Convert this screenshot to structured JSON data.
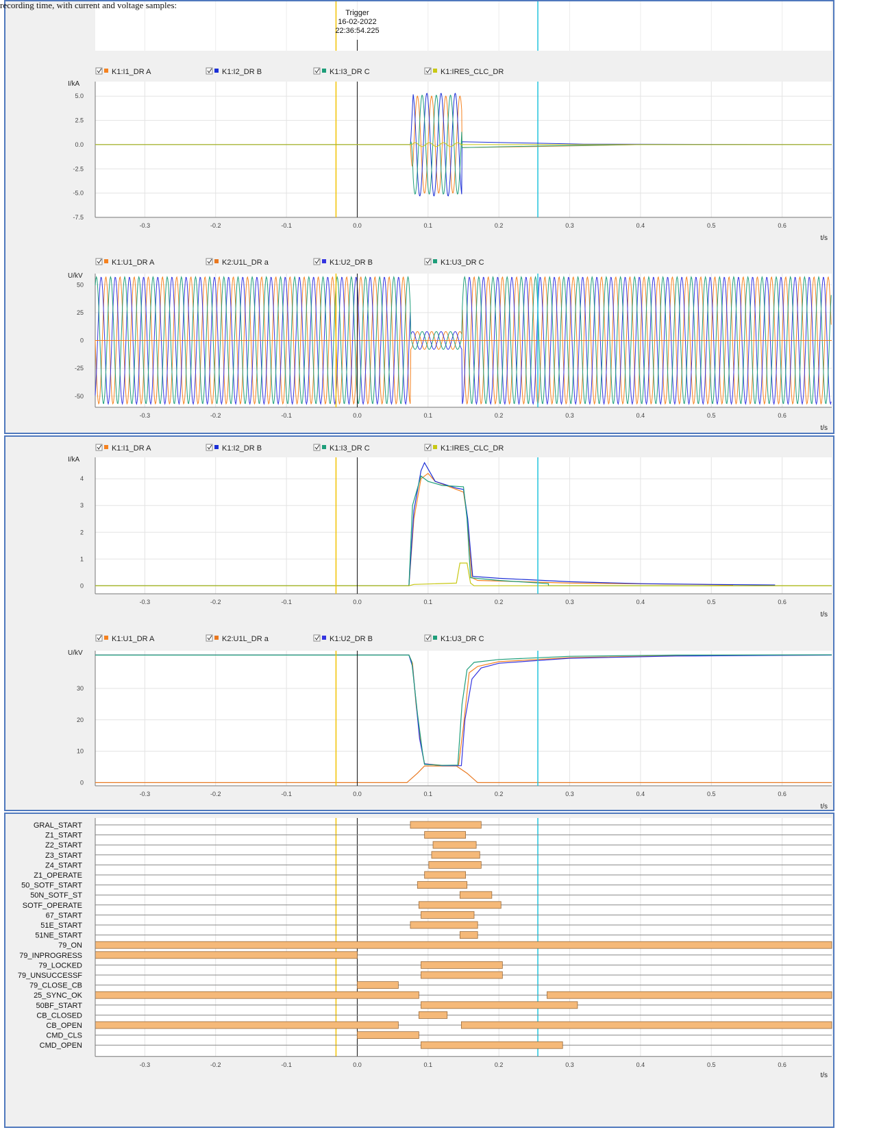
{
  "caption": "recording time, with current and voltage samples:",
  "trigger": {
    "label": "Trigger",
    "date": "16-02-2022",
    "time": "22:36:54.225"
  },
  "colors": {
    "I1": "#f58220",
    "I2": "#1b2fd6",
    "I3": "#1e9e7a",
    "IRES": "#c8c814",
    "U1": "#f58220",
    "U1L": "#e87820",
    "U2": "#3434e0",
    "U3": "#1e9e7a",
    "trigger_cursor": "#f2c200",
    "cursor2": "#22c4dc",
    "zero_line": "#111111",
    "digital_bar": "#f5b979",
    "digital_bar_border": "#9a6a3a"
  },
  "cursors": {
    "trigger_t": -0.03,
    "cursor2_t": 0.255,
    "zero_t": 0.0
  },
  "chart_data": [
    {
      "id": "inst_current",
      "type": "line",
      "xlabel": "t/s",
      "ylabel": "I/kA",
      "xlim": [
        -0.37,
        0.67
      ],
      "ylim": [
        -7.5,
        6.5
      ],
      "xticks": [
        -0.3,
        -0.2,
        -0.1,
        0.0,
        0.1,
        0.2,
        0.3,
        0.4,
        0.5,
        0.6
      ],
      "yticks": [
        -7.5,
        -5.0,
        -2.5,
        0.0,
        2.5,
        5.0
      ],
      "legend": [
        "K1:I1_DR A",
        "K1:I2_DR B",
        "K1:I3_DR C",
        "K1:IRES_CLC_DR"
      ],
      "legend_colors": [
        "I1",
        "I2",
        "I3",
        "IRES"
      ],
      "series": [
        {
          "name": "K1:I1_DR A",
          "wave": {
            "amp": 5.0,
            "freq": 50,
            "phase": 0,
            "t0": 0.075,
            "t1": 0.148
          },
          "tail": [
            [
              0.148,
              -0.3
            ],
            [
              0.25,
              -0.2
            ],
            [
              0.4,
              0.0
            ],
            [
              0.67,
              0.0
            ]
          ]
        },
        {
          "name": "K1:I2_DR B",
          "wave": {
            "amp": 5.3,
            "freq": 50,
            "phase": 120,
            "t0": 0.075,
            "t1": 0.148
          },
          "tail": [
            [
              0.148,
              0.3
            ],
            [
              0.25,
              0.15
            ],
            [
              0.32,
              0.05
            ],
            [
              0.67,
              0.0
            ]
          ]
        },
        {
          "name": "K1:I3_DR C",
          "wave": {
            "amp": 5.1,
            "freq": 50,
            "phase": 240,
            "t0": 0.075,
            "t1": 0.148
          },
          "tail": [
            [
              0.148,
              -0.3
            ],
            [
              0.25,
              -0.15
            ],
            [
              0.4,
              0.0
            ],
            [
              0.67,
              0.0
            ]
          ]
        },
        {
          "name": "K1:IRES_CLC_DR",
          "wave": {
            "amp": 0.2,
            "freq": 50,
            "phase": 60,
            "t0": 0.075,
            "t1": 0.148
          },
          "tail": [
            [
              0.148,
              0.0
            ],
            [
              0.67,
              0.0
            ]
          ]
        }
      ]
    },
    {
      "id": "inst_voltage",
      "type": "line",
      "xlabel": "t/s",
      "ylabel": "U/kV",
      "xlim": [
        -0.37,
        0.67
      ],
      "ylim": [
        -60,
        60
      ],
      "xticks": [
        -0.3,
        -0.2,
        -0.1,
        0.0,
        0.1,
        0.2,
        0.3,
        0.4,
        0.5,
        0.6
      ],
      "yticks": [
        -50,
        -25,
        0,
        25,
        50
      ],
      "legend": [
        "K1:U1_DR A",
        "K2:U1L_DR a",
        "K1:U2_DR B",
        "K1:U3_DR C"
      ],
      "legend_colors": [
        "U1",
        "U1L",
        "U2",
        "U3"
      ],
      "series": [
        {
          "name": "K1:U1_DR A",
          "amp": 57,
          "freq": 50,
          "phase": 0,
          "sag": {
            "t0": 0.075,
            "t1": 0.148,
            "amp": 8
          }
        },
        {
          "name": "K2:U1L_DR a",
          "amp": 0,
          "freq": 50,
          "phase": 0,
          "sag": {
            "t0": 0.075,
            "t1": 0.148,
            "amp": 0
          }
        },
        {
          "name": "K1:U2_DR B",
          "amp": 57,
          "freq": 50,
          "phase": 120,
          "sag": {
            "t0": 0.075,
            "t1": 0.148,
            "amp": 8
          }
        },
        {
          "name": "K1:U3_DR C",
          "amp": 57,
          "freq": 50,
          "phase": 240,
          "sag": {
            "t0": 0.075,
            "t1": 0.148,
            "amp": 8
          }
        }
      ]
    },
    {
      "id": "rms_current",
      "type": "line",
      "xlabel": "t/s",
      "ylabel": "I/kA",
      "xlim": [
        -0.37,
        0.67
      ],
      "ylim": [
        -0.3,
        4.8
      ],
      "xticks": [
        -0.3,
        -0.2,
        -0.1,
        0.0,
        0.1,
        0.2,
        0.3,
        0.4,
        0.5,
        0.6
      ],
      "yticks": [
        0,
        1,
        2,
        3,
        4
      ],
      "legend": [
        "K1:I1_DR A",
        "K1:I2_DR B",
        "K1:I3_DR C",
        "K1:IRES_CLC_DR"
      ],
      "legend_colors": [
        "I1",
        "I2",
        "I3",
        "IRES"
      ],
      "series": [
        {
          "name": "K1:I1_DR A",
          "points": [
            [
              -0.37,
              0
            ],
            [
              0.073,
              0
            ],
            [
              0.08,
              2.5
            ],
            [
              0.09,
              4.0
            ],
            [
              0.1,
              4.2
            ],
            [
              0.11,
              3.9
            ],
            [
              0.14,
              3.6
            ],
            [
              0.15,
              3.5
            ],
            [
              0.155,
              2.6
            ],
            [
              0.162,
              0.3
            ],
            [
              0.17,
              0.2
            ],
            [
              0.3,
              0.1
            ],
            [
              0.48,
              0.05
            ],
            [
              0.53,
              0.03
            ],
            [
              0.53,
              0
            ],
            [
              0.67,
              0
            ]
          ]
        },
        {
          "name": "K1:I2_DR B",
          "points": [
            [
              -0.37,
              0
            ],
            [
              0.073,
              0
            ],
            [
              0.08,
              2.8
            ],
            [
              0.09,
              4.3
            ],
            [
              0.095,
              4.6
            ],
            [
              0.11,
              3.9
            ],
            [
              0.14,
              3.65
            ],
            [
              0.15,
              3.6
            ],
            [
              0.156,
              2.5
            ],
            [
              0.163,
              0.35
            ],
            [
              0.2,
              0.28
            ],
            [
              0.3,
              0.15
            ],
            [
              0.4,
              0.08
            ],
            [
              0.5,
              0.05
            ],
            [
              0.59,
              0.03
            ]
          ]
        },
        {
          "name": "K1:I3_DR C",
          "points": [
            [
              -0.37,
              0
            ],
            [
              0.073,
              0
            ],
            [
              0.078,
              3.0
            ],
            [
              0.09,
              4.1
            ],
            [
              0.1,
              3.9
            ],
            [
              0.12,
              3.75
            ],
            [
              0.15,
              3.7
            ],
            [
              0.155,
              2.5
            ],
            [
              0.16,
              0.3
            ],
            [
              0.2,
              0.2
            ],
            [
              0.27,
              0.08
            ],
            [
              0.27,
              0
            ],
            [
              0.67,
              0
            ]
          ]
        },
        {
          "name": "K1:IRES_CLC_DR",
          "points": [
            [
              -0.37,
              0
            ],
            [
              0.073,
              0
            ],
            [
              0.08,
              0.05
            ],
            [
              0.14,
              0.1
            ],
            [
              0.145,
              0.85
            ],
            [
              0.155,
              0.85
            ],
            [
              0.16,
              0.1
            ],
            [
              0.165,
              0
            ],
            [
              0.67,
              0
            ]
          ]
        }
      ]
    },
    {
      "id": "rms_voltage",
      "type": "line",
      "xlabel": "t/s",
      "ylabel": "U/kV",
      "xlim": [
        -0.37,
        0.67
      ],
      "ylim": [
        -1,
        42
      ],
      "xticks": [
        -0.3,
        -0.2,
        -0.1,
        0.0,
        0.1,
        0.2,
        0.3,
        0.4,
        0.5,
        0.6
      ],
      "yticks": [
        0,
        10,
        20,
        30
      ],
      "legend": [
        "K1:U1_DR A",
        "K2:U1L_DR a",
        "K1:U2_DR B",
        "K1:U3_DR C"
      ],
      "legend_colors": [
        "U1",
        "U1L",
        "U2",
        "U3"
      ],
      "series": [
        {
          "name": "K1:U1_DR A",
          "points": [
            [
              -0.37,
              40.6
            ],
            [
              0.073,
              40.6
            ],
            [
              0.078,
              38
            ],
            [
              0.083,
              25
            ],
            [
              0.09,
              12
            ],
            [
              0.095,
              6
            ],
            [
              0.12,
              5.5
            ],
            [
              0.143,
              5.5
            ],
            [
              0.15,
              18
            ],
            [
              0.158,
              35
            ],
            [
              0.17,
              37
            ],
            [
              0.2,
              38.5
            ],
            [
              0.3,
              39.8
            ],
            [
              0.45,
              40.4
            ],
            [
              0.67,
              40.6
            ]
          ]
        },
        {
          "name": "K2:U1L_DR a",
          "points": [
            [
              -0.37,
              0
            ],
            [
              0.07,
              0
            ],
            [
              0.085,
              3
            ],
            [
              0.095,
              5.3
            ],
            [
              0.14,
              5.3
            ],
            [
              0.155,
              3
            ],
            [
              0.17,
              0
            ],
            [
              0.67,
              0
            ]
          ]
        },
        {
          "name": "K1:U2_DR B",
          "points": [
            [
              -0.37,
              40.6
            ],
            [
              0.073,
              40.6
            ],
            [
              0.078,
              37
            ],
            [
              0.082,
              28
            ],
            [
              0.088,
              14
            ],
            [
              0.095,
              6
            ],
            [
              0.12,
              5.4
            ],
            [
              0.147,
              5.4
            ],
            [
              0.152,
              20
            ],
            [
              0.162,
              33
            ],
            [
              0.175,
              36.5
            ],
            [
              0.2,
              38
            ],
            [
              0.3,
              39.6
            ],
            [
              0.45,
              40.3
            ],
            [
              0.67,
              40.6
            ]
          ]
        },
        {
          "name": "K1:U3_DR C",
          "points": [
            [
              -0.37,
              40.6
            ],
            [
              0.073,
              40.6
            ],
            [
              0.077,
              38.5
            ],
            [
              0.085,
              22
            ],
            [
              0.092,
              10
            ],
            [
              0.095,
              5.8
            ],
            [
              0.12,
              5.5
            ],
            [
              0.142,
              5.6
            ],
            [
              0.148,
              25
            ],
            [
              0.155,
              36
            ],
            [
              0.165,
              38.3
            ],
            [
              0.2,
              39.2
            ],
            [
              0.3,
              40.2
            ],
            [
              0.45,
              40.6
            ],
            [
              0.67,
              40.7
            ]
          ]
        }
      ]
    },
    {
      "id": "digital_channels",
      "type": "timeline",
      "xlabel": "t/s",
      "xlim": [
        -0.37,
        0.67
      ],
      "xticks": [
        -0.3,
        -0.2,
        -0.1,
        0.0,
        0.1,
        0.2,
        0.3,
        0.4,
        0.5,
        0.6
      ],
      "channels": [
        {
          "name": "GRAL_START",
          "intervals": [
            [
              0.075,
              0.175
            ]
          ]
        },
        {
          "name": "Z1_START",
          "intervals": [
            [
              0.095,
              0.153
            ]
          ]
        },
        {
          "name": "Z2_START",
          "intervals": [
            [
              0.107,
              0.168
            ]
          ]
        },
        {
          "name": "Z3_START",
          "intervals": [
            [
              0.105,
              0.173
            ]
          ]
        },
        {
          "name": "Z4_START",
          "intervals": [
            [
              0.101,
              0.175
            ]
          ]
        },
        {
          "name": "Z1_OPERATE",
          "intervals": [
            [
              0.095,
              0.153
            ]
          ]
        },
        {
          "name": "50_SOTF_START",
          "intervals": [
            [
              0.085,
              0.155
            ]
          ]
        },
        {
          "name": "50N_SOTF_ST",
          "intervals": [
            [
              0.145,
              0.19
            ]
          ]
        },
        {
          "name": "SOTF_OPERATE",
          "intervals": [
            [
              0.087,
              0.203
            ]
          ]
        },
        {
          "name": "67_START",
          "intervals": [
            [
              0.09,
              0.165
            ]
          ]
        },
        {
          "name": "51E_START",
          "intervals": [
            [
              0.075,
              0.17
            ]
          ]
        },
        {
          "name": "51NE_START",
          "intervals": [
            [
              0.145,
              0.17
            ]
          ]
        },
        {
          "name": "79_ON",
          "intervals": [
            [
              -0.37,
              0.67
            ]
          ]
        },
        {
          "name": "79_INPROGRESS",
          "intervals": [
            [
              -0.37,
              0.0
            ]
          ]
        },
        {
          "name": "79_LOCKED",
          "intervals": [
            [
              0.09,
              0.205
            ]
          ]
        },
        {
          "name": "79_UNSUCCESSF",
          "intervals": [
            [
              0.09,
              0.205
            ]
          ]
        },
        {
          "name": "79_CLOSE_CB",
          "intervals": [
            [
              0.0,
              0.058
            ]
          ]
        },
        {
          "name": "25_SYNC_OK",
          "intervals": [
            [
              -0.37,
              0.087
            ],
            [
              0.268,
              0.67
            ]
          ]
        },
        {
          "name": "50BF_START",
          "intervals": [
            [
              0.09,
              0.311
            ]
          ]
        },
        {
          "name": "CB_CLOSED",
          "intervals": [
            [
              0.087,
              0.127
            ]
          ]
        },
        {
          "name": "CB_OPEN",
          "intervals": [
            [
              -0.37,
              0.058
            ],
            [
              0.147,
              0.67
            ]
          ]
        },
        {
          "name": "CMD_CLS",
          "intervals": [
            [
              0.0,
              0.087
            ]
          ]
        },
        {
          "name": "CMD_OPEN",
          "intervals": [
            [
              0.09,
              0.29
            ]
          ]
        }
      ]
    }
  ]
}
